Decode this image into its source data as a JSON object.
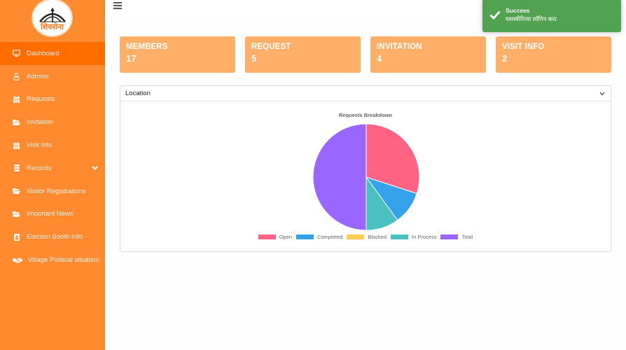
{
  "sidebar": {
    "logo": {
      "text": "शिवसेना",
      "icon": "bow-arrow-logo-icon"
    },
    "items": [
      {
        "label": "Dashboard",
        "icon": "monitor-icon",
        "active": true
      },
      {
        "label": "Admins",
        "icon": "user-icon"
      },
      {
        "label": "Requests",
        "icon": "calendar-icon"
      },
      {
        "label": "Invitation",
        "icon": "folder-open-icon"
      },
      {
        "label": "Visit Info",
        "icon": "calendar-icon"
      },
      {
        "label": "Records",
        "icon": "database-icon",
        "has_submenu": true
      },
      {
        "label": "Visitor Registrations",
        "icon": "folder-open-icon"
      },
      {
        "label": "Important News",
        "icon": "folder-open-icon"
      },
      {
        "label": "Election Booth Info",
        "icon": "id-badge-icon"
      },
      {
        "label": "Village Political situation",
        "icon": "handshake-icon"
      }
    ]
  },
  "topbar": {
    "menu_icon": "hamburger-icon"
  },
  "cards": [
    {
      "title": "MEMBERS",
      "value": "17"
    },
    {
      "title": "REQUEST",
      "value": "5"
    },
    {
      "title": "INVITATION",
      "value": "4"
    },
    {
      "title": "VISIT INFO",
      "value": "2"
    }
  ],
  "panel": {
    "select_label": "Location"
  },
  "toast": {
    "title": "Success",
    "message": "यशस्वीरित्या लॉगिन करा"
  },
  "colors": {
    "sidebar": "#ff8a30",
    "sidebar_active": "#ff6d00",
    "card": "#ffaf68",
    "toast": "#51a351"
  },
  "chart_data": {
    "type": "pie",
    "title": "Requests Breakdown",
    "categories": [
      "Open",
      "Completed",
      "Blocked",
      "In Process",
      "Total"
    ],
    "values": [
      3,
      1,
      0,
      1,
      5
    ],
    "colors": [
      "#ff6384",
      "#36a2eb",
      "#ffcd56",
      "#4bc0c0",
      "#9966ff"
    ],
    "legend_position": "bottom"
  }
}
